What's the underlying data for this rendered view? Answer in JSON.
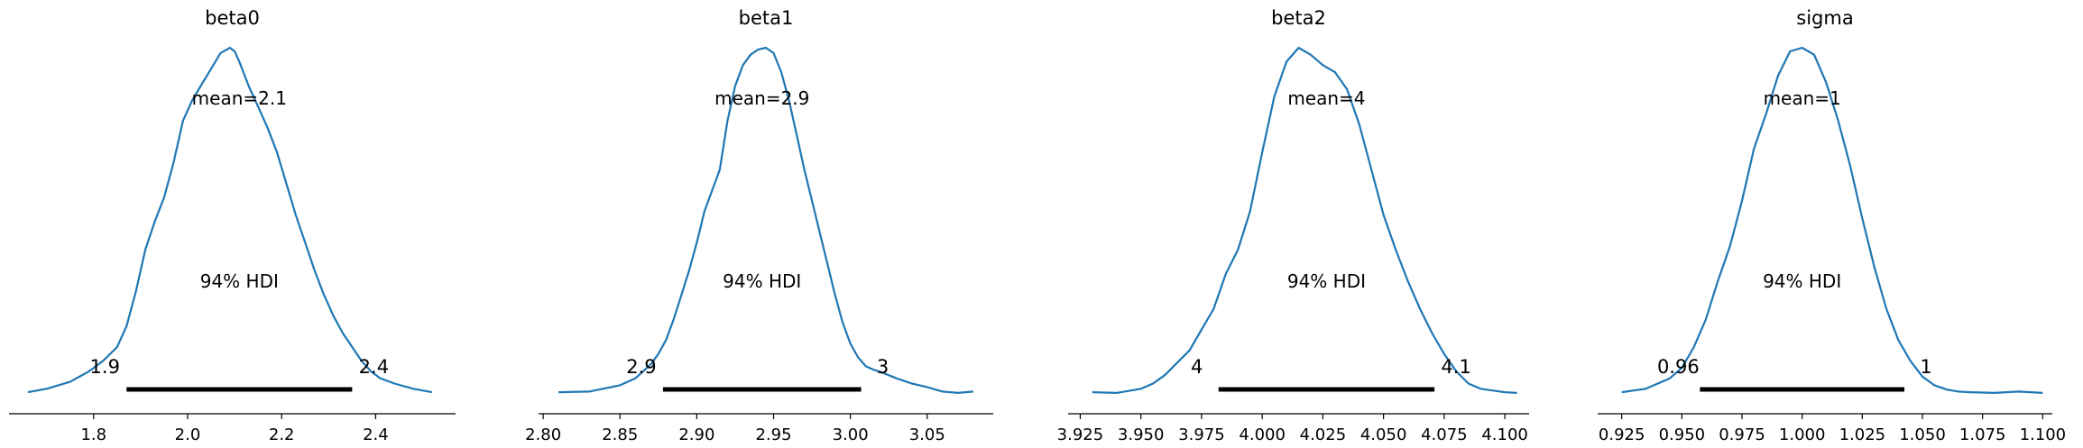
{
  "chart_data": [
    {
      "type": "area",
      "title": "beta0",
      "mean_label": "mean=2.1",
      "hdi_label": "94% HDI",
      "hdi": [
        1.87,
        2.35
      ],
      "hdi_low_label": "1.9",
      "hdi_high_label": "2.4",
      "xlim": [
        1.62,
        2.57
      ],
      "ticks": [
        1.8,
        2.0,
        2.2,
        2.4
      ],
      "tick_labels": [
        "1.8",
        "2.0",
        "2.2",
        "2.4"
      ],
      "curve": {
        "x": [
          1.66,
          1.7,
          1.75,
          1.79,
          1.82,
          1.85,
          1.87,
          1.89,
          1.91,
          1.93,
          1.95,
          1.97,
          1.99,
          2.01,
          2.03,
          2.05,
          2.07,
          2.09,
          2.1,
          2.11,
          2.13,
          2.15,
          2.17,
          2.19,
          2.21,
          2.23,
          2.25,
          2.27,
          2.29,
          2.31,
          2.33,
          2.35,
          2.37,
          2.39,
          2.41,
          2.44,
          2.48,
          2.52
        ],
        "y": [
          0.01,
          0.02,
          0.04,
          0.07,
          0.1,
          0.14,
          0.2,
          0.3,
          0.42,
          0.5,
          0.57,
          0.67,
          0.79,
          0.85,
          0.895,
          0.94,
          0.985,
          1.0,
          0.99,
          0.96,
          0.89,
          0.83,
          0.77,
          0.7,
          0.61,
          0.52,
          0.44,
          0.36,
          0.29,
          0.23,
          0.18,
          0.14,
          0.1,
          0.07,
          0.05,
          0.035,
          0.02,
          0.01
        ]
      }
    },
    {
      "type": "area",
      "title": "beta1",
      "mean_label": "mean=2.9",
      "hdi_label": "94% HDI",
      "hdi": [
        2.878,
        3.007
      ],
      "hdi_low_label": "2.9",
      "hdi_high_label": "3",
      "xlim": [
        2.797,
        3.093
      ],
      "ticks": [
        2.8,
        2.85,
        2.9,
        2.95,
        3.0,
        3.05
      ],
      "tick_labels": [
        "2.80",
        "2.85",
        "2.90",
        "2.95",
        "3.00",
        "3.05"
      ],
      "curve": {
        "x": [
          2.81,
          2.83,
          2.85,
          2.86,
          2.87,
          2.875,
          2.88,
          2.885,
          2.89,
          2.895,
          2.9,
          2.905,
          2.91,
          2.915,
          2.92,
          2.925,
          2.93,
          2.935,
          2.94,
          2.945,
          2.95,
          2.955,
          2.96,
          2.965,
          2.97,
          2.975,
          2.98,
          2.985,
          2.99,
          2.995,
          3.0,
          3.005,
          3.01,
          3.015,
          3.02,
          3.03,
          3.04,
          3.05,
          3.06,
          3.07,
          3.08
        ],
        "y": [
          0.01,
          0.012,
          0.03,
          0.05,
          0.09,
          0.12,
          0.16,
          0.22,
          0.29,
          0.36,
          0.44,
          0.53,
          0.59,
          0.65,
          0.79,
          0.89,
          0.95,
          0.98,
          0.995,
          1.0,
          0.985,
          0.93,
          0.85,
          0.75,
          0.65,
          0.56,
          0.47,
          0.38,
          0.29,
          0.21,
          0.15,
          0.11,
          0.085,
          0.075,
          0.068,
          0.05,
          0.035,
          0.025,
          0.012,
          0.008,
          0.012
        ]
      }
    },
    {
      "type": "area",
      "title": "beta2",
      "mean_label": "mean=4",
      "hdi_label": "94% HDI",
      "hdi": [
        3.982,
        4.071
      ],
      "hdi_low_label": "4",
      "hdi_high_label": "4.1",
      "xlim": [
        3.92,
        4.11
      ],
      "ticks": [
        3.925,
        3.95,
        3.975,
        4.0,
        4.025,
        4.05,
        4.075,
        4.1
      ],
      "tick_labels": [
        "3.925",
        "3.950",
        "3.975",
        "4.000",
        "4.025",
        "4.050",
        "4.075",
        "4.100"
      ],
      "curve": {
        "x": [
          3.93,
          3.94,
          3.95,
          3.955,
          3.96,
          3.965,
          3.97,
          3.975,
          3.98,
          3.985,
          3.99,
          3.995,
          4.0,
          4.005,
          4.01,
          4.015,
          4.02,
          4.025,
          4.03,
          4.035,
          4.04,
          4.045,
          4.05,
          4.055,
          4.06,
          4.065,
          4.07,
          4.075,
          4.08,
          4.085,
          4.09,
          4.1,
          4.105
        ],
        "y": [
          0.01,
          0.008,
          0.02,
          0.035,
          0.06,
          0.095,
          0.13,
          0.19,
          0.25,
          0.35,
          0.42,
          0.53,
          0.7,
          0.86,
          0.96,
          1.0,
          0.98,
          0.95,
          0.93,
          0.88,
          0.78,
          0.65,
          0.52,
          0.42,
          0.33,
          0.25,
          0.18,
          0.12,
          0.07,
          0.035,
          0.02,
          0.01,
          0.008
        ]
      }
    },
    {
      "type": "area",
      "title": "sigma",
      "mean_label": "mean=1",
      "hdi_label": "94% HDI",
      "hdi": [
        0.9575,
        1.0425
      ],
      "hdi_low_label": "0.96",
      "hdi_high_label": "1",
      "xlim": [
        0.915,
        1.104
      ],
      "ticks": [
        0.925,
        0.95,
        0.975,
        1.0,
        1.025,
        1.05,
        1.075,
        1.1
      ],
      "tick_labels": [
        "0.925",
        "0.950",
        "0.975",
        "1.000",
        "1.025",
        "1.050",
        "1.075",
        "1.100"
      ],
      "curve": {
        "x": [
          0.925,
          0.935,
          0.945,
          0.95,
          0.955,
          0.96,
          0.965,
          0.97,
          0.975,
          0.98,
          0.985,
          0.99,
          0.995,
          1.0,
          1.005,
          1.01,
          1.015,
          1.02,
          1.025,
          1.03,
          1.035,
          1.04,
          1.045,
          1.05,
          1.055,
          1.06,
          1.065,
          1.07,
          1.08,
          1.09,
          1.1
        ],
        "y": [
          0.01,
          0.02,
          0.05,
          0.08,
          0.14,
          0.22,
          0.33,
          0.43,
          0.56,
          0.71,
          0.81,
          0.92,
          0.99,
          1.0,
          0.98,
          0.9,
          0.79,
          0.66,
          0.51,
          0.37,
          0.25,
          0.16,
          0.1,
          0.055,
          0.03,
          0.018,
          0.012,
          0.01,
          0.008,
          0.012,
          0.008
        ]
      }
    }
  ]
}
